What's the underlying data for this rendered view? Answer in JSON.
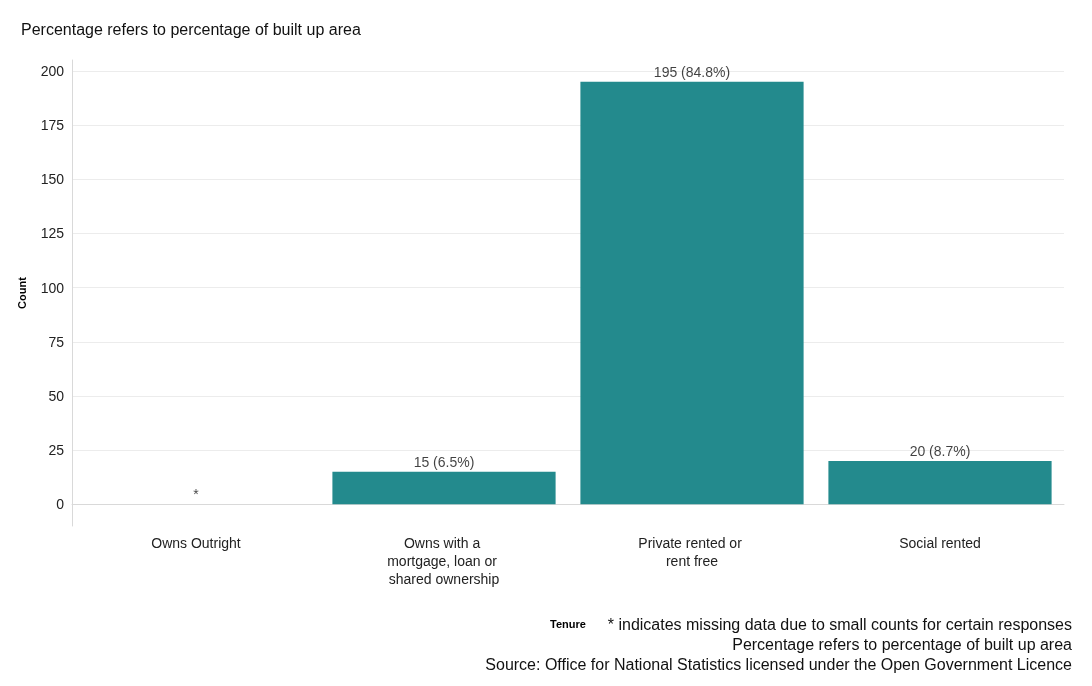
{
  "chart_data": {
    "type": "bar",
    "title": "Percentage refers to percentage of built up area",
    "xlabel": "Tenure",
    "ylabel": "Count",
    "categories": [
      "Owns Outright",
      "Owns with a mortgage, loan or shared ownership",
      "Private rented or rent free",
      "Social rented"
    ],
    "values": [
      null,
      15,
      195,
      20
    ],
    "value_labels": [
      "*",
      "15 (6.5%)",
      "195 (84.8%)",
      "20 (8.7%)"
    ],
    "color": "#238a8d",
    "ylim": [
      -10,
      205
    ],
    "yticks": [
      0,
      25,
      50,
      75,
      100,
      125,
      150,
      175,
      200
    ],
    "grid": "y",
    "annotations": [
      "* indicates missing data due to small counts for certain responses",
      "Percentage refers to percentage of built up area",
      "Source: Office for National Statistics licensed under the Open Government Licence"
    ]
  }
}
